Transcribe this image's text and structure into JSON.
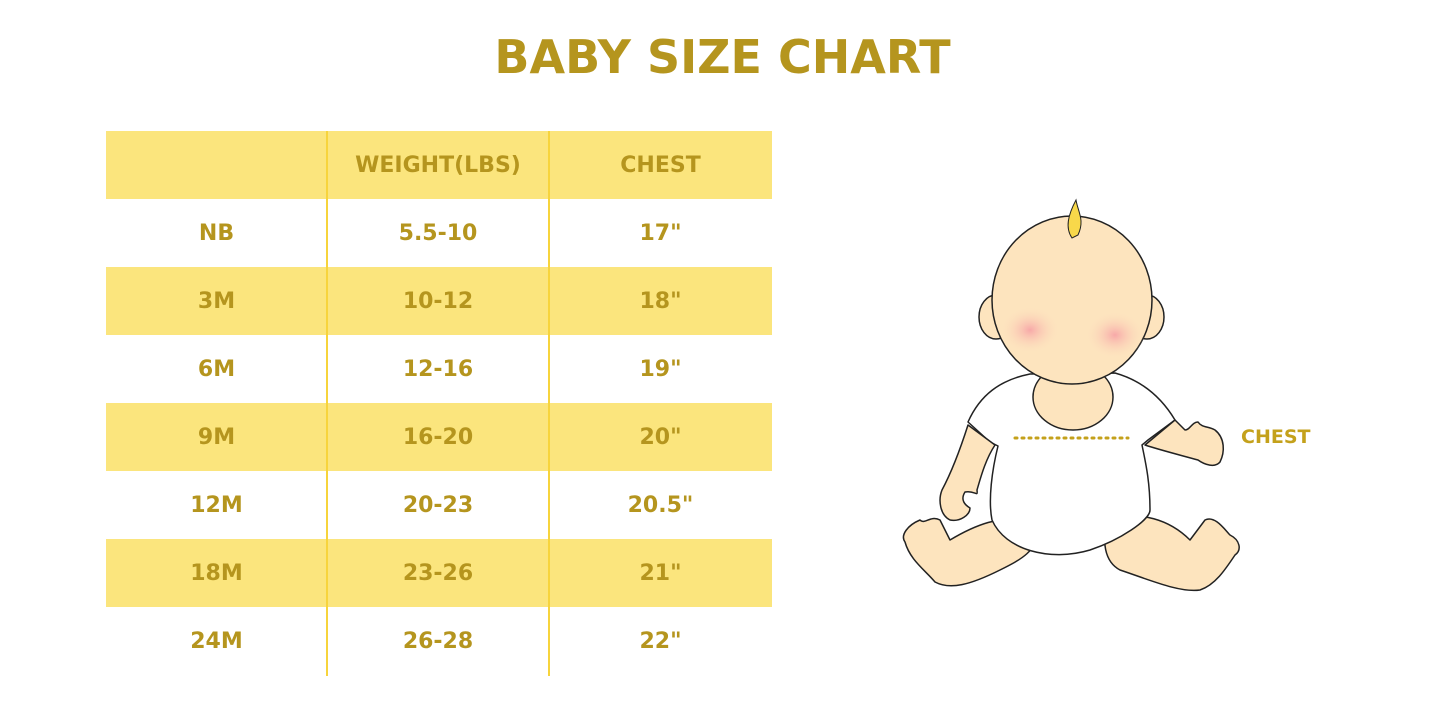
{
  "title": "BABY SIZE CHART",
  "table": {
    "headers": [
      "",
      "WEIGHT(LBS)",
      "CHEST"
    ],
    "rows": [
      [
        "NB",
        "5.5-10",
        "17\""
      ],
      [
        "3M",
        "10-12",
        "18\""
      ],
      [
        "6M",
        "12-16",
        "19\""
      ],
      [
        "9M",
        "16-20",
        "20\""
      ],
      [
        "12M",
        "20-23",
        "20.5\""
      ],
      [
        "18M",
        "23-26",
        "21\""
      ],
      [
        "24M",
        "26-28",
        "22\""
      ]
    ]
  },
  "illustration": {
    "chest_label": "CHEST"
  },
  "colors": {
    "accent_text": "#B5951E",
    "row_fill": "#FBE57D",
    "skin": "#FDE4BE"
  }
}
